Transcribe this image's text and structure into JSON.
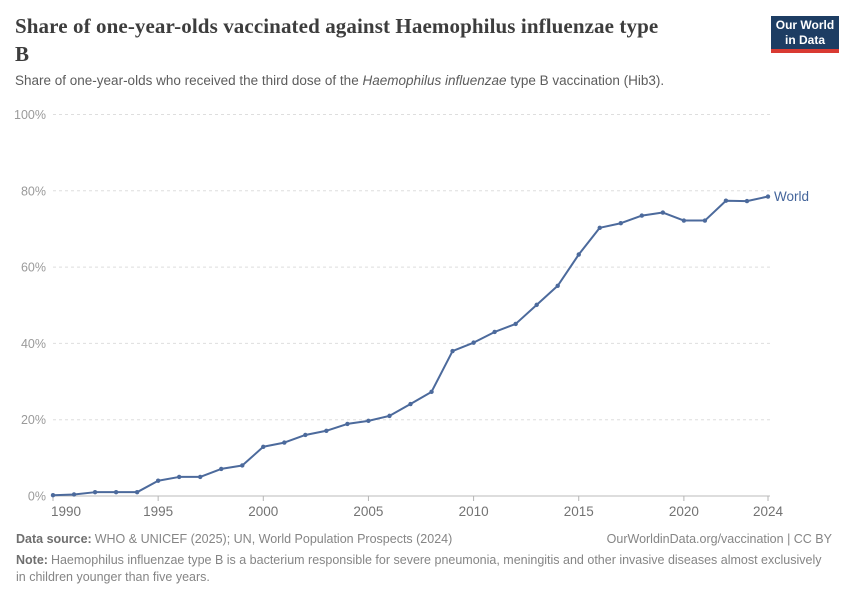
{
  "header": {
    "title_line1": "Share of one-year-olds vaccinated against Haemophilus influenzae type",
    "title_line2": "B",
    "subtitle_pre": "Share of one-year-olds who received the third dose of the ",
    "subtitle_italic": "Haemophilus influenzae",
    "subtitle_post": " type B vaccination (Hib3).",
    "logo_line1": "Our World",
    "logo_line2": "in Data"
  },
  "chart_data": {
    "type": "line",
    "title": "Share of one-year-olds vaccinated against Haemophilus influenzae type B",
    "xlabel": "",
    "ylabel": "",
    "x": [
      1990,
      1991,
      1992,
      1993,
      1994,
      1995,
      1996,
      1997,
      1998,
      1999,
      2000,
      2001,
      2002,
      2003,
      2004,
      2005,
      2006,
      2007,
      2008,
      2009,
      2010,
      2011,
      2012,
      2013,
      2014,
      2015,
      2016,
      2017,
      2018,
      2019,
      2020,
      2021,
      2022,
      2023,
      2024
    ],
    "series": [
      {
        "name": "World",
        "values": [
          0.2,
          0.4,
          1,
          1,
          1,
          4,
          5,
          5,
          7.1,
          8,
          12.9,
          14,
          16,
          17.1,
          18.9,
          19.7,
          21,
          24.1,
          27.3,
          38,
          40.2,
          43,
          45.1,
          50.1,
          55.1,
          63.3,
          70.3,
          71.5,
          73.5,
          74.3,
          72.2,
          72.2,
          77.4,
          77.3,
          78.5
        ]
      }
    ],
    "xlim": [
      1990,
      2024
    ],
    "ylim": [
      0,
      100
    ],
    "xticks": [
      1990,
      1995,
      2000,
      2005,
      2010,
      2015,
      2020,
      2024
    ],
    "yticks": [
      0,
      20,
      40,
      60,
      80,
      100
    ],
    "ytick_suffix": "%",
    "grid": "horizontal-dashed",
    "legend_position": "end-of-line",
    "colors": {
      "line": "#4c6a9c",
      "series_label": "#44659b",
      "gridline": "#dedede",
      "axis_line": "#bbbbbb",
      "tick_mark": "#b5b5b5"
    }
  },
  "footer": {
    "source_label": "Data source:",
    "source_text": "WHO & UNICEF (2025); UN, World Population Prospects (2024)",
    "link_text": "OurWorldinData.org/vaccination | CC BY",
    "note_label": "Note:",
    "note_text": "Haemophilus influenzae type B is a bacterium responsible for severe pneumonia, meningitis and other invasive diseases almost exclusively in children younger than five years."
  }
}
